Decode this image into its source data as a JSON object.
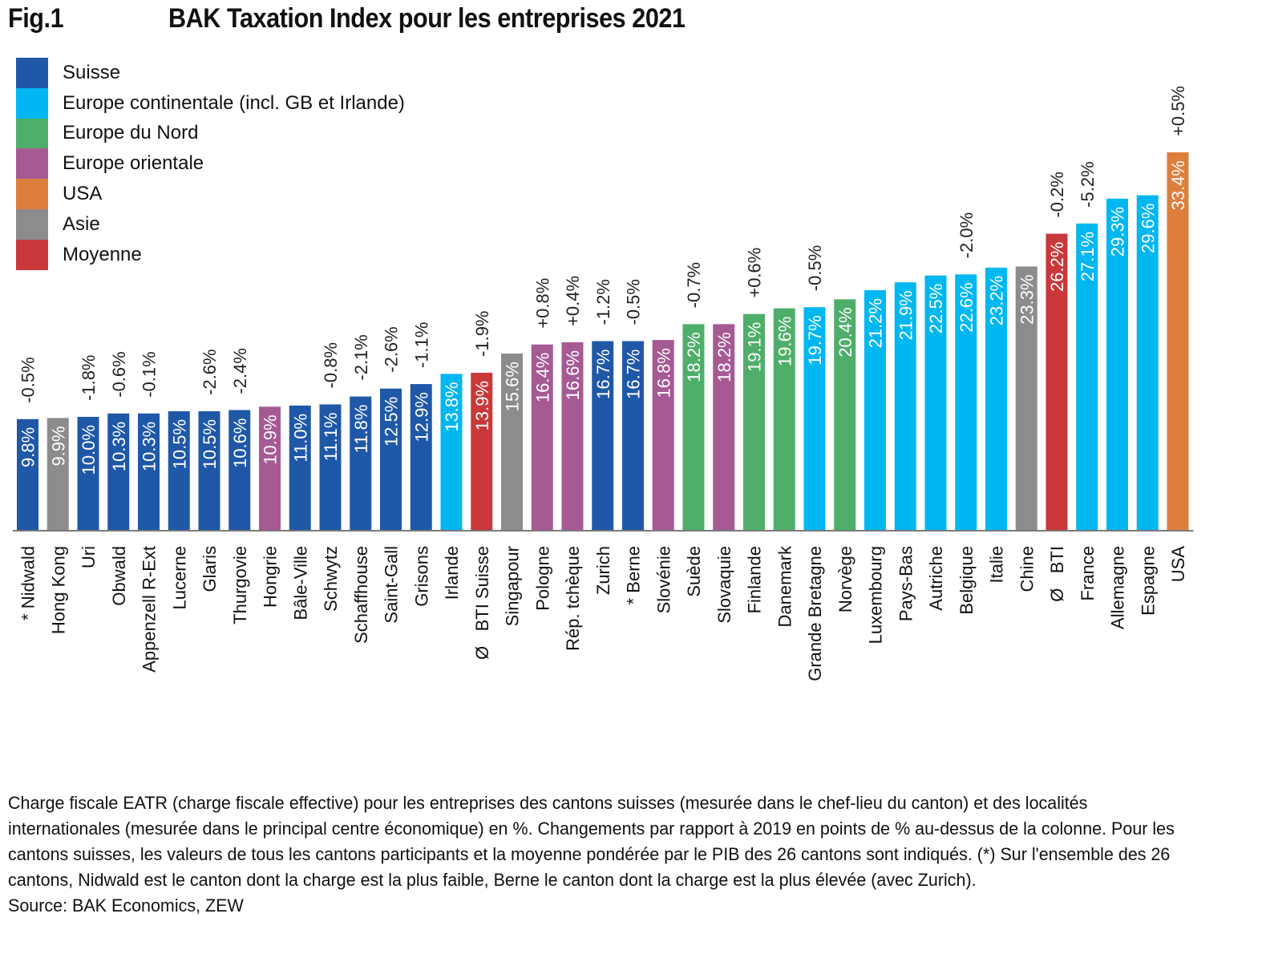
{
  "header": {
    "figure_label": "Fig.1",
    "title": "BAK Taxation Index pour les entreprises 2021"
  },
  "chart_data": {
    "type": "bar",
    "title": "BAK Taxation Index pour les entreprises 2021",
    "xlabel": "",
    "ylabel": "Charge fiscale EATR (%)",
    "ylim": [
      0,
      36
    ],
    "grid": false,
    "legend_position": "top-left",
    "value_suffix": "%",
    "legend": [
      {
        "key": "suisse",
        "label": "Suisse",
        "color": "#2058A8"
      },
      {
        "key": "europe_cont",
        "label": "Europe continentale (incl. GB et Irlande)",
        "color": "#00B7F1"
      },
      {
        "key": "nord",
        "label": "Europe du Nord",
        "color": "#4FAE6A"
      },
      {
        "key": "orientale",
        "label": "Europe orientale",
        "color": "#A65A94"
      },
      {
        "key": "usa",
        "label": "USA",
        "color": "#DD7E3C"
      },
      {
        "key": "asie",
        "label": "Asie",
        "color": "#8C8C8C"
      },
      {
        "key": "moyenne",
        "label": "Moyenne",
        "color": "#C9383A"
      }
    ],
    "categories": [
      "* Nidwald",
      "Hong Kong",
      "Uri",
      "Obwald",
      "Appenzell R-Ext",
      "Lucerne",
      "Glaris",
      "Thurgovie",
      "Hongrie",
      "Bâle-Ville",
      "Schwytz",
      "Schaffhouse",
      "Saint-Gall",
      "Grisons",
      "Irlande",
      "Ø   BTI Suisse",
      "Singapour",
      "Pologne",
      "Rép. tchèque",
      "Zurich",
      "* Berne",
      "Slovénie",
      "Suède",
      "Slovaquie",
      "Finlande",
      "Danemark",
      "Grande Bretagne",
      "Norvège",
      "Luxembourg",
      "Pays-Bas",
      "Autriche",
      "Belgique",
      "Italie",
      "Chine",
      "Ø   BTI",
      "France",
      "Allemagne",
      "Espagne",
      "USA"
    ],
    "values": [
      9.8,
      9.9,
      10.0,
      10.3,
      10.3,
      10.5,
      10.5,
      10.6,
      10.9,
      11.0,
      11.1,
      11.8,
      12.5,
      12.9,
      13.8,
      13.9,
      15.6,
      16.4,
      16.6,
      16.7,
      16.7,
      16.8,
      18.2,
      18.2,
      19.1,
      19.6,
      19.7,
      20.4,
      21.2,
      21.9,
      22.5,
      22.6,
      23.2,
      23.3,
      26.2,
      27.1,
      29.3,
      29.6,
      33.4
    ],
    "groups": [
      "suisse",
      "asie",
      "suisse",
      "suisse",
      "suisse",
      "suisse",
      "suisse",
      "suisse",
      "orientale",
      "suisse",
      "suisse",
      "suisse",
      "suisse",
      "suisse",
      "europe_cont",
      "moyenne",
      "asie",
      "orientale",
      "orientale",
      "suisse",
      "suisse",
      "orientale",
      "nord",
      "orientale",
      "nord",
      "nord",
      "europe_cont",
      "nord",
      "europe_cont",
      "europe_cont",
      "europe_cont",
      "europe_cont",
      "europe_cont",
      "asie",
      "moyenne",
      "europe_cont",
      "europe_cont",
      "europe_cont",
      "usa"
    ],
    "value_labels": [
      "9.8%",
      "9.9%",
      "10.0%",
      "10.3%",
      "10.3%",
      "10.5%",
      "10.5%",
      "10.6%",
      "10.9%",
      "11.0%",
      "11.1%",
      "11.8%",
      "12.5%",
      "12.9%",
      "13.8%",
      "13.9%",
      "15.6%",
      "16.4%",
      "16.6%",
      "16.7%",
      "16.7%",
      "16.8%",
      "18.2%",
      "18.2%",
      "19.1%",
      "19.6%",
      "19.7%",
      "20.4%",
      "21.2%",
      "21.9%",
      "22.5%",
      "22.6%",
      "23.2%",
      "23.3%",
      "26.2%",
      "27.1%",
      "29.3%",
      "29.6%",
      "33.4%"
    ],
    "change_since_2019": [
      "-0.5%",
      "",
      "-1.8%",
      "-0.6%",
      "-0.1%",
      "",
      "-2.6%",
      "-2.4%",
      "",
      "",
      "-0.8%",
      "-2.1%",
      "-2.6%",
      "-1.1%",
      "",
      "-1.9%",
      "",
      "+0.8%",
      "+0.4%",
      "-1.2%",
      "-0.5%",
      "",
      "-0.7%",
      "",
      "+0.6%",
      "",
      "-0.5%",
      "",
      "",
      "",
      "",
      "-2.0%",
      "",
      "",
      "-0.2%",
      "-5.2%",
      "",
      "",
      "+0.5%"
    ]
  },
  "caption": {
    "text": "Charge fiscale EATR (charge fiscale effective) pour les entreprises des cantons suisses (mesurée dans le chef-lieu du canton) et des localités internationales (mesurée dans le principal centre économique) en %. Changements par rapport à 2019 en points de % au-dessus de la colonne. Pour les cantons suisses, les valeurs de tous les cantons participants et la moyenne pondérée par le PIB des 26 cantons sont indiqués. (*) Sur l'ensemble des 26 cantons, Nidwald est le canton dont la charge est la plus faible, Berne le canton dont la charge est la plus élevée (avec Zurich).",
    "source": "Source: BAK Economics, ZEW"
  }
}
